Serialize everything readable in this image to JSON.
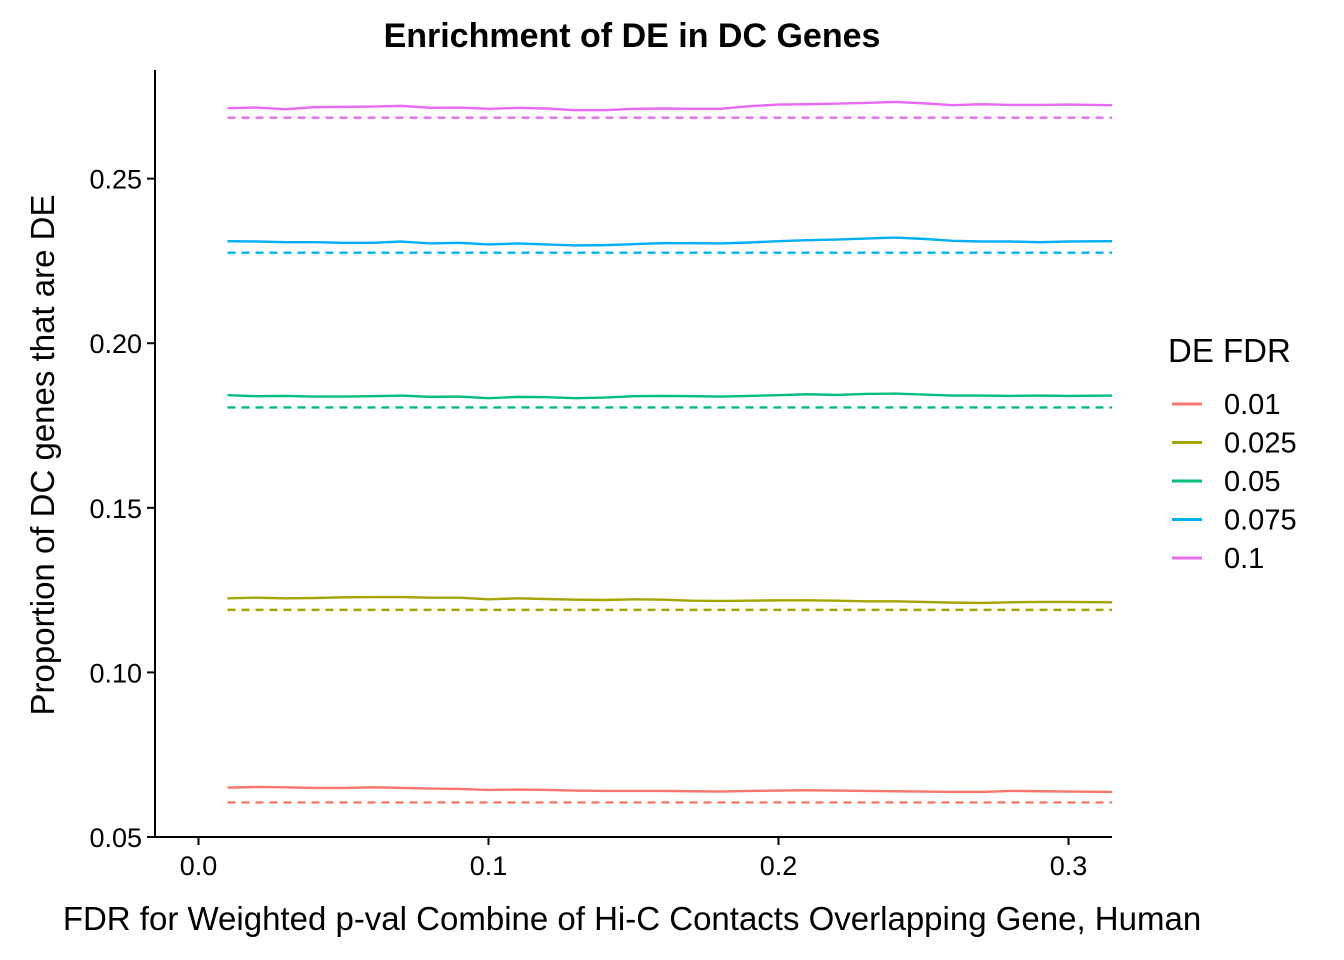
{
  "chart_data": {
    "type": "line",
    "title": "Enrichment of DE in DC Genes",
    "xlabel": "FDR for Weighted p-val Combine of Hi-C Contacts Overlapping Gene, Human",
    "ylabel": "Proportion of DC genes that are DE",
    "xlim": [
      -0.015,
      0.315
    ],
    "ylim": [
      0.05,
      0.283
    ],
    "x_ticks": [
      0.0,
      0.1,
      0.2,
      0.3
    ],
    "x_tick_labels": [
      "0.0",
      "0.1",
      "0.2",
      "0.3"
    ],
    "y_ticks": [
      0.05,
      0.1,
      0.15,
      0.2,
      0.25
    ],
    "y_tick_labels": [
      "0.05",
      "0.10",
      "0.15",
      "0.20",
      "0.25"
    ],
    "grid": false,
    "legend": {
      "title": "DE FDR",
      "position": "right"
    },
    "x": [
      0.01,
      0.02,
      0.03,
      0.04,
      0.05,
      0.06,
      0.07,
      0.08,
      0.09,
      0.1,
      0.11,
      0.12,
      0.13,
      0.14,
      0.15,
      0.16,
      0.17,
      0.18,
      0.19,
      0.2,
      0.21,
      0.22,
      0.23,
      0.24,
      0.25,
      0.26,
      0.27,
      0.28,
      0.29,
      0.3,
      0.315
    ],
    "series": [
      {
        "name": "0.01",
        "color": "#F8766D",
        "baseline": 0.0605,
        "values": [
          0.065,
          0.0652,
          0.0651,
          0.0649,
          0.0649,
          0.0651,
          0.0649,
          0.0647,
          0.0646,
          0.0643,
          0.0644,
          0.0643,
          0.0641,
          0.064,
          0.064,
          0.064,
          0.0639,
          0.0638,
          0.064,
          0.0641,
          0.0642,
          0.0641,
          0.064,
          0.0639,
          0.0638,
          0.0637,
          0.0637,
          0.064,
          0.0639,
          0.0638,
          0.0637
        ]
      },
      {
        "name": "0.025",
        "color": "#A3A500",
        "baseline": 0.119,
        "values": [
          0.1225,
          0.1227,
          0.1225,
          0.1226,
          0.1228,
          0.1229,
          0.1229,
          0.1227,
          0.1227,
          0.1222,
          0.1225,
          0.1223,
          0.1221,
          0.122,
          0.1222,
          0.1221,
          0.1218,
          0.1217,
          0.1218,
          0.1219,
          0.1219,
          0.1218,
          0.1216,
          0.1216,
          0.1214,
          0.1212,
          0.1211,
          0.1213,
          0.1214,
          0.1214,
          0.1213
        ]
      },
      {
        "name": "0.05",
        "color": "#00BF7D",
        "baseline": 0.1805,
        "values": [
          0.1842,
          0.1839,
          0.184,
          0.1838,
          0.1838,
          0.1839,
          0.1841,
          0.1837,
          0.1838,
          0.1833,
          0.1837,
          0.1836,
          0.1833,
          0.1835,
          0.1839,
          0.184,
          0.1839,
          0.1838,
          0.184,
          0.1842,
          0.1845,
          0.1843,
          0.1846,
          0.1847,
          0.1844,
          0.1841,
          0.1841,
          0.184,
          0.1841,
          0.184,
          0.1841
        ]
      },
      {
        "name": "0.075",
        "color": "#00B0F6",
        "baseline": 0.2275,
        "values": [
          0.231,
          0.2309,
          0.2307,
          0.2307,
          0.2305,
          0.2305,
          0.2309,
          0.2303,
          0.2305,
          0.23,
          0.2303,
          0.23,
          0.2297,
          0.2298,
          0.2301,
          0.2304,
          0.2304,
          0.2303,
          0.2306,
          0.231,
          0.2313,
          0.2315,
          0.2318,
          0.2321,
          0.2317,
          0.2311,
          0.2309,
          0.2309,
          0.2307,
          0.2309,
          0.231
        ]
      },
      {
        "name": "0.1",
        "color": "#E76BF3",
        "baseline": 0.2685,
        "values": [
          0.2714,
          0.2716,
          0.2711,
          0.2717,
          0.2718,
          0.2719,
          0.2721,
          0.2715,
          0.2716,
          0.2712,
          0.2715,
          0.2713,
          0.2708,
          0.2708,
          0.2712,
          0.2713,
          0.2712,
          0.2712,
          0.272,
          0.2725,
          0.2726,
          0.2728,
          0.273,
          0.2733,
          0.2729,
          0.2723,
          0.2726,
          0.2724,
          0.2724,
          0.2725,
          0.2723
        ]
      }
    ]
  }
}
